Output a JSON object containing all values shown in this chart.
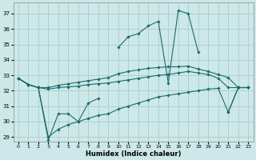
{
  "title": "",
  "xlabel": "Humidex (Indice chaleur)",
  "bg_color": "#cde8e8",
  "grid_color": "#aacccc",
  "line_color": "#1a6b6b",
  "xlim": [
    -0.5,
    23.5
  ],
  "ylim": [
    28.7,
    37.7
  ],
  "yticks": [
    29,
    30,
    31,
    32,
    33,
    34,
    35,
    36,
    37
  ],
  "xticks": [
    0,
    1,
    2,
    3,
    4,
    5,
    6,
    7,
    8,
    9,
    10,
    11,
    12,
    13,
    14,
    15,
    16,
    17,
    18,
    19,
    20,
    21,
    22,
    23
  ],
  "series": [
    {
      "x": [
        0,
        1,
        2,
        3,
        4,
        5,
        6,
        7,
        8,
        9,
        10,
        11,
        12,
        13,
        14,
        15,
        16,
        17,
        18,
        19,
        20,
        21,
        22,
        23
      ],
      "y": [
        32.8,
        32.4,
        32.2,
        28.8,
        30.5,
        30.5,
        30.0,
        31.2,
        31.5,
        null,
        34.8,
        35.5,
        35.7,
        36.2,
        36.5,
        32.5,
        37.2,
        37.0,
        34.5,
        null,
        null,
        30.6,
        32.2,
        32.2
      ]
    },
    {
      "x": [
        0,
        1,
        2,
        3,
        4,
        5,
        6,
        7,
        8,
        9,
        10,
        11,
        12,
        13,
        14,
        15,
        16,
        17,
        18,
        19,
        20,
        21,
        22,
        23
      ],
      "y": [
        32.8,
        32.4,
        32.2,
        32.2,
        32.35,
        32.45,
        32.55,
        32.65,
        32.75,
        32.85,
        33.1,
        33.25,
        33.35,
        33.45,
        33.5,
        33.55,
        33.55,
        33.6,
        33.4,
        33.25,
        33.05,
        32.85,
        32.2,
        32.2
      ]
    },
    {
      "x": [
        0,
        1,
        2,
        3,
        4,
        5,
        6,
        7,
        8,
        9,
        10,
        11,
        12,
        13,
        14,
        15,
        16,
        17,
        18,
        19,
        20,
        21,
        22,
        23
      ],
      "y": [
        32.8,
        32.4,
        32.2,
        32.1,
        32.2,
        32.25,
        32.3,
        32.4,
        32.45,
        32.5,
        32.6,
        32.7,
        32.8,
        32.9,
        33.0,
        33.05,
        33.15,
        33.25,
        33.15,
        33.05,
        32.8,
        32.2,
        32.2,
        32.2
      ]
    },
    {
      "x": [
        0,
        1,
        2,
        3,
        4,
        5,
        6,
        7,
        8,
        9,
        10,
        11,
        12,
        13,
        14,
        15,
        16,
        17,
        18,
        19,
        20,
        21,
        22,
        23
      ],
      "y": [
        32.8,
        32.4,
        32.2,
        29.0,
        29.5,
        29.8,
        30.0,
        30.2,
        30.4,
        30.5,
        30.8,
        31.0,
        31.2,
        31.4,
        31.6,
        31.7,
        31.8,
        31.9,
        32.0,
        32.1,
        32.15,
        30.6,
        32.2,
        32.2
      ]
    }
  ]
}
